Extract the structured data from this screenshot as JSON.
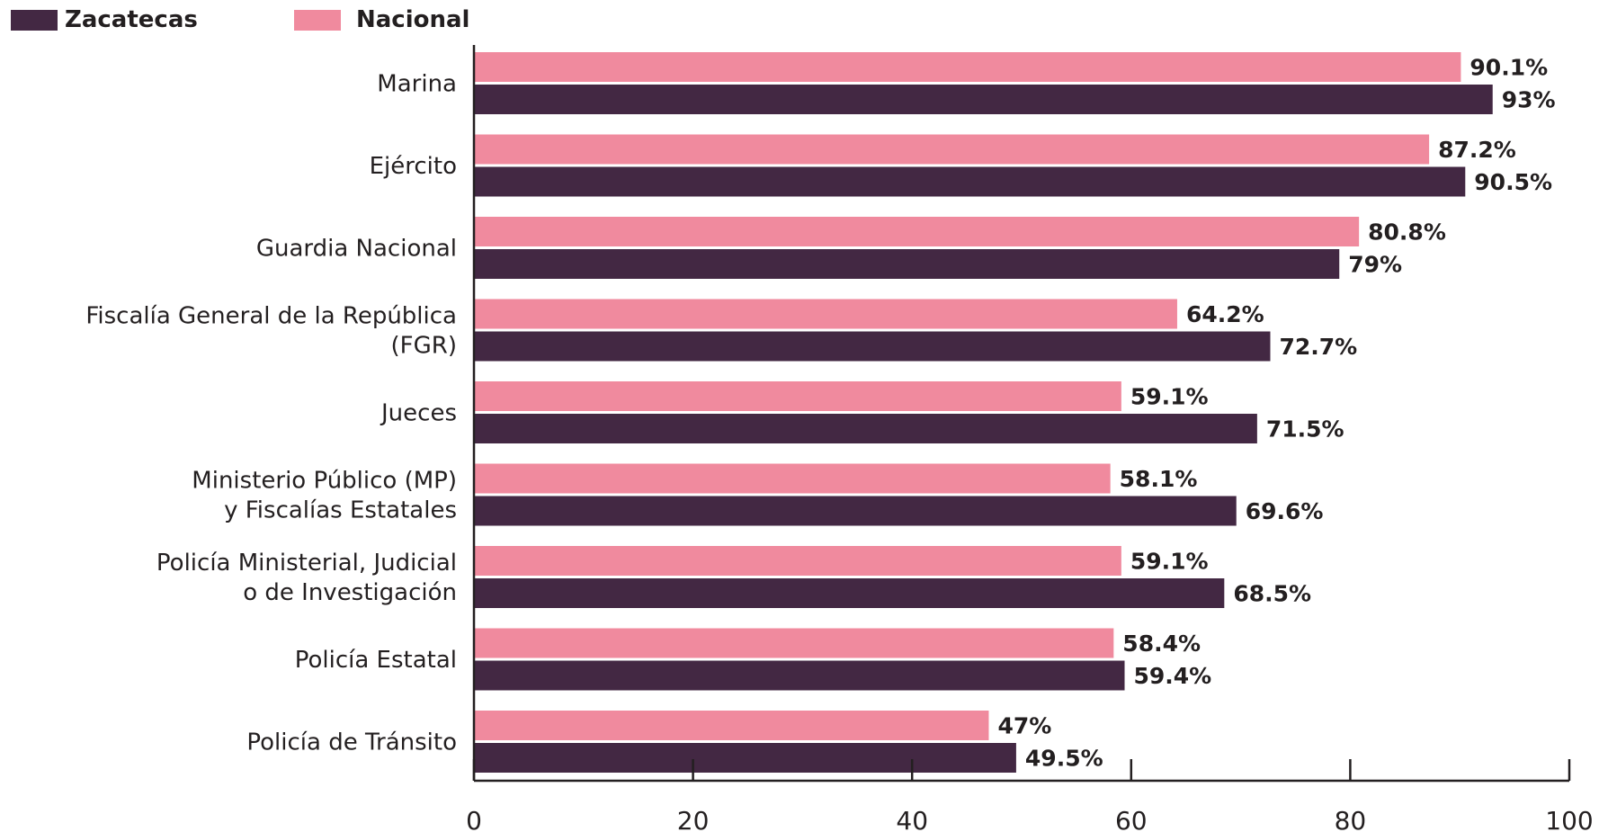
{
  "chart_data": {
    "type": "bar",
    "orientation": "horizontal",
    "categories": [
      [
        "Marina"
      ],
      [
        "Ejército"
      ],
      [
        "Guardia Nacional"
      ],
      [
        "Fiscalía General de la República",
        "(FGR)"
      ],
      [
        "Jueces"
      ],
      [
        "Ministerio Público (MP)",
        "y Fiscalías Estatales"
      ],
      [
        "Policía Ministerial, Judicial",
        "o de Investigación"
      ],
      [
        "Policía Estatal"
      ],
      [
        "Policía de Tránsito"
      ]
    ],
    "series": [
      {
        "name": "Nacional",
        "color": "#f08a9e",
        "values": [
          90.1,
          87.2,
          80.8,
          64.2,
          59.1,
          58.1,
          59.1,
          58.4,
          47
        ],
        "labels": [
          "90.1%",
          "87.2%",
          "80.8%",
          "64.2%",
          "59.1%",
          "58.1%",
          "59.1%",
          "58.4%",
          "47%"
        ]
      },
      {
        "name": "Zacatecas",
        "color": "#432843",
        "values": [
          93,
          90.5,
          79,
          72.7,
          71.5,
          69.6,
          68.5,
          59.4,
          49.5
        ],
        "labels": [
          "93%",
          "90.5%",
          "79%",
          "72.7%",
          "71.5%",
          "69.6%",
          "68.5%",
          "59.4%",
          "49.5%"
        ]
      }
    ],
    "legend": {
      "position": "top-left",
      "order": [
        "Zacatecas",
        "Nacional"
      ]
    },
    "x_ticks": [
      "0",
      "20",
      "40",
      "60",
      "80",
      "100"
    ],
    "xlim": [
      0,
      100
    ],
    "xlabel": "",
    "ylabel": "",
    "grid": false
  }
}
